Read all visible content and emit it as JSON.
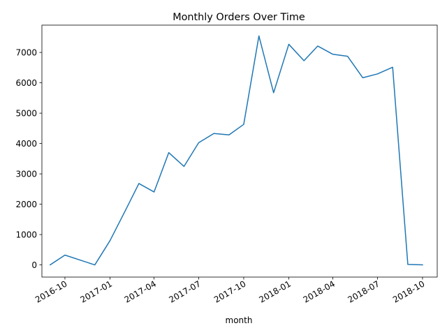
{
  "chart_data": {
    "type": "line",
    "title": "Monthly Orders Over Time",
    "xlabel": "month",
    "ylabel": "",
    "grid": false,
    "legend": "none",
    "xlim": [
      "2016-08-15",
      "2018-10-31"
    ],
    "ylim": [
      -400,
      7900
    ],
    "x_ticks": [
      "2016-10",
      "2017-01",
      "2017-04",
      "2017-07",
      "2017-10",
      "2018-01",
      "2018-04",
      "2018-07",
      "2018-10"
    ],
    "y_ticks": [
      0,
      1000,
      2000,
      3000,
      4000,
      5000,
      6000,
      7000
    ],
    "series": [
      {
        "color": "#1f77b4",
        "points": [
          {
            "x": "2016-09-01",
            "y": 4
          },
          {
            "x": "2016-10-01",
            "y": 324
          },
          {
            "x": "2016-12-01",
            "y": 1
          },
          {
            "x": "2017-01-01",
            "y": 800
          },
          {
            "x": "2017-02-01",
            "y": 1780
          },
          {
            "x": "2017-03-01",
            "y": 2682
          },
          {
            "x": "2017-04-01",
            "y": 2404
          },
          {
            "x": "2017-05-01",
            "y": 3700
          },
          {
            "x": "2017-06-01",
            "y": 3245
          },
          {
            "x": "2017-07-01",
            "y": 4026
          },
          {
            "x": "2017-08-01",
            "y": 4331
          },
          {
            "x": "2017-09-01",
            "y": 4285
          },
          {
            "x": "2017-10-01",
            "y": 4631
          },
          {
            "x": "2017-11-01",
            "y": 7544
          },
          {
            "x": "2017-12-01",
            "y": 5673
          },
          {
            "x": "2018-01-01",
            "y": 7269
          },
          {
            "x": "2018-02-01",
            "y": 6728
          },
          {
            "x": "2018-03-01",
            "y": 7211
          },
          {
            "x": "2018-04-01",
            "y": 6939
          },
          {
            "x": "2018-05-01",
            "y": 6873
          },
          {
            "x": "2018-06-01",
            "y": 6167
          },
          {
            "x": "2018-07-01",
            "y": 6292
          },
          {
            "x": "2018-08-01",
            "y": 6512
          },
          {
            "x": "2018-09-01",
            "y": 16
          },
          {
            "x": "2018-10-01",
            "y": 4
          }
        ]
      }
    ]
  }
}
